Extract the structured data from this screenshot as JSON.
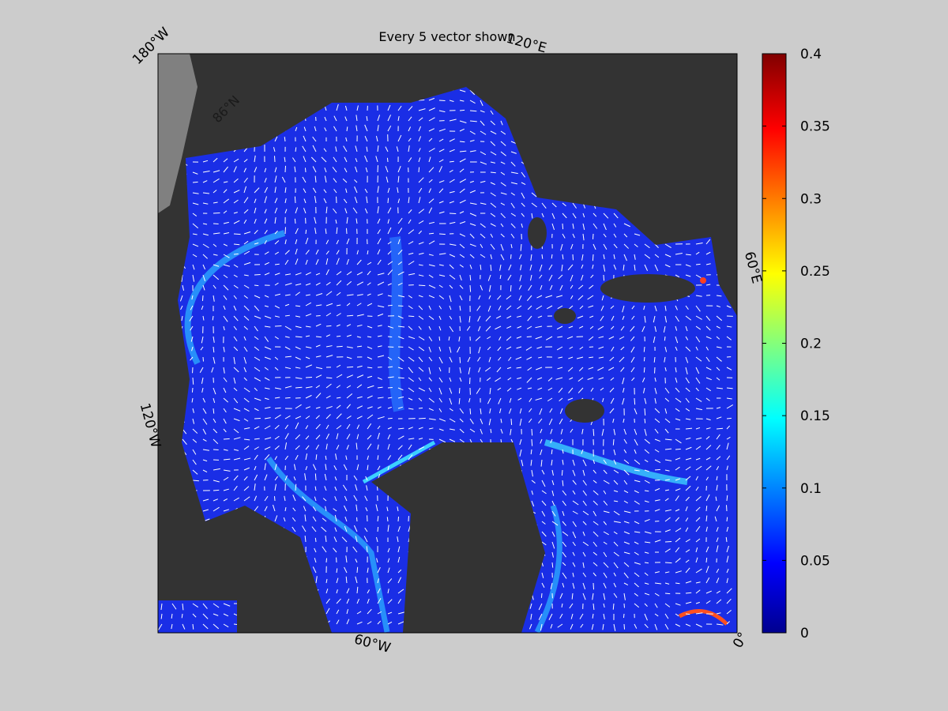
{
  "title": "Every 5 vector shown",
  "colorbar": {
    "ylim": [
      0,
      0.4
    ],
    "yticks": [
      0,
      0.05,
      0.1,
      0.15,
      0.2,
      0.25,
      0.3,
      0.35,
      0.4
    ]
  },
  "map_labels": {
    "lon": [
      "180°W",
      "120°E",
      "60°E",
      "0°",
      "60°W",
      "120°W"
    ],
    "lat": [
      "86°N"
    ]
  }
}
